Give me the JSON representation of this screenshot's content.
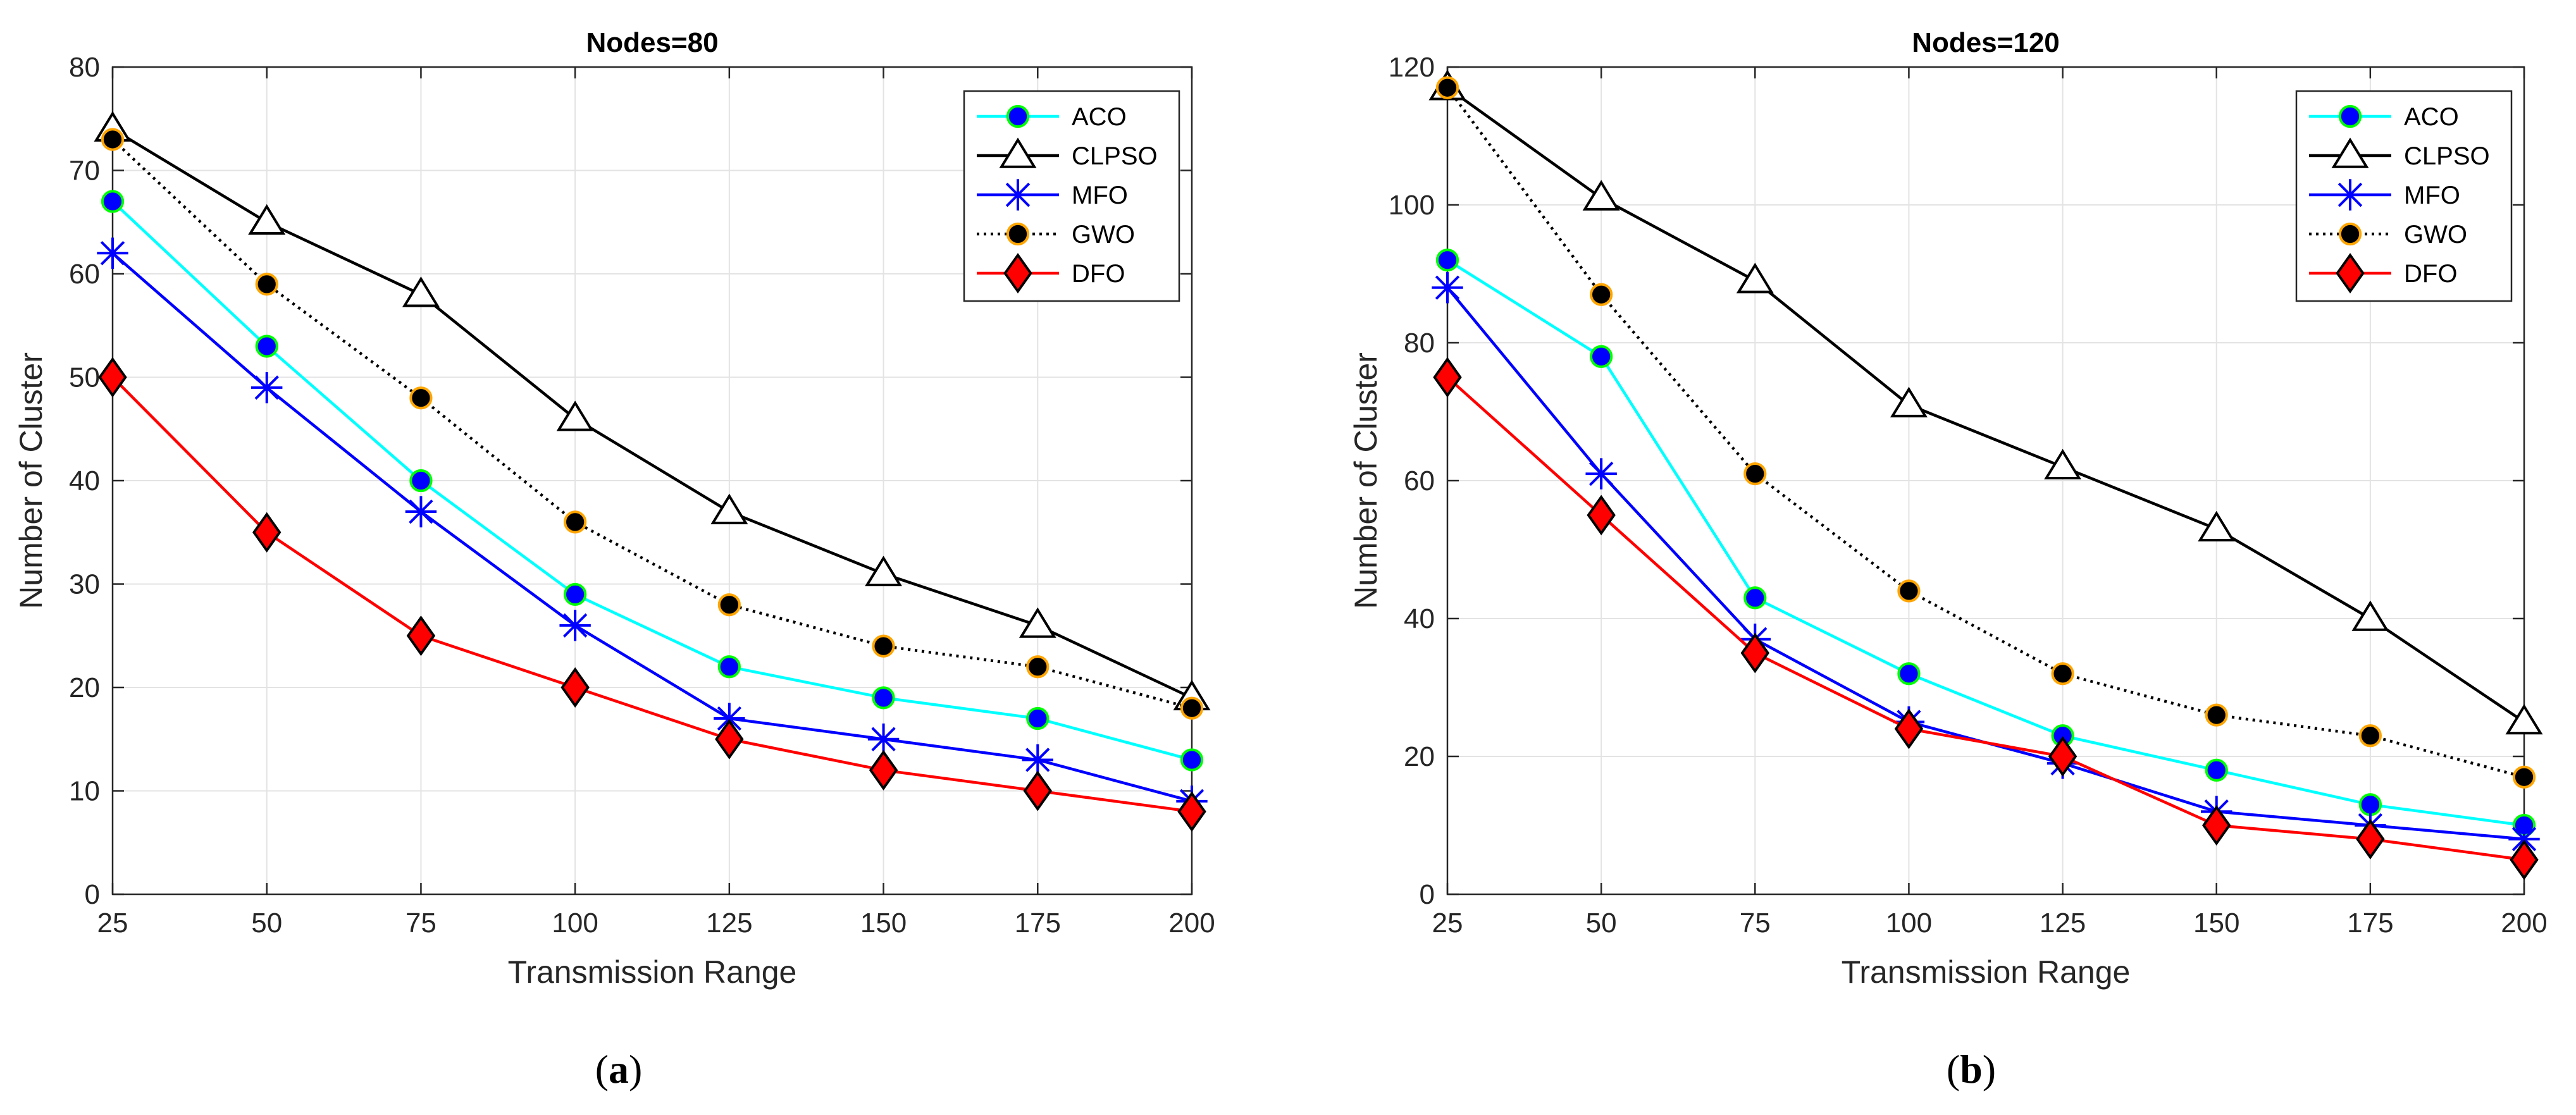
{
  "figure": {
    "captions": [
      {
        "open": "(",
        "letter": "a",
        "close": ")"
      },
      {
        "open": "(",
        "letter": "b",
        "close": ")"
      }
    ]
  },
  "chart_data": [
    {
      "type": "line",
      "title": "Nodes=80",
      "xlabel": "Transmission Range",
      "ylabel": "Number of Cluster",
      "x": [
        25,
        50,
        75,
        100,
        125,
        150,
        175,
        200
      ],
      "xlim": [
        25,
        200
      ],
      "ylim": [
        0,
        80
      ],
      "xticks": [
        25,
        50,
        75,
        100,
        125,
        150,
        175,
        200
      ],
      "yticks": [
        0,
        10,
        20,
        30,
        40,
        50,
        60,
        70,
        80
      ],
      "grid": true,
      "legend_position": "top-right",
      "series": [
        {
          "name": "ACO",
          "values": [
            67,
            53,
            40,
            29,
            22,
            19,
            17,
            13
          ],
          "color": "#00ffff",
          "marker": "circle",
          "marker_face": "#0000ff",
          "marker_edge": "#00ff00",
          "dash": "solid"
        },
        {
          "name": "CLPSO",
          "values": [
            74,
            65,
            58,
            46,
            37,
            31,
            26,
            19
          ],
          "color": "#000000",
          "marker": "triangle",
          "marker_face": "#ffffff",
          "marker_edge": "#000000",
          "dash": "solid"
        },
        {
          "name": "MFO",
          "values": [
            62,
            49,
            37,
            26,
            17,
            15,
            13,
            9
          ],
          "color": "#0000ff",
          "marker": "asterisk",
          "marker_face": "none",
          "marker_edge": "#0000ff",
          "dash": "solid"
        },
        {
          "name": "GWO",
          "values": [
            73,
            59,
            48,
            36,
            28,
            24,
            22,
            18
          ],
          "color": "#000000",
          "marker": "circle",
          "marker_face": "#000000",
          "marker_edge": "#ffa500",
          "dash": "dotted"
        },
        {
          "name": "DFO",
          "values": [
            50,
            35,
            25,
            20,
            15,
            12,
            10,
            8
          ],
          "color": "#ff0000",
          "marker": "diamond",
          "marker_face": "#ff0000",
          "marker_edge": "#000000",
          "dash": "solid"
        }
      ]
    },
    {
      "type": "line",
      "title": "Nodes=120",
      "xlabel": "Transmission Range",
      "ylabel": "Number of Cluster",
      "x": [
        25,
        50,
        75,
        100,
        125,
        150,
        175,
        200
      ],
      "xlim": [
        25,
        200
      ],
      "ylim": [
        0,
        120
      ],
      "xticks": [
        25,
        50,
        75,
        100,
        125,
        150,
        175,
        200
      ],
      "yticks": [
        0,
        20,
        40,
        60,
        80,
        100,
        120
      ],
      "grid": true,
      "legend_position": "top-right",
      "series": [
        {
          "name": "ACO",
          "values": [
            92,
            78,
            43,
            32,
            23,
            18,
            13,
            10
          ],
          "color": "#00ffff",
          "marker": "circle",
          "marker_face": "#0000ff",
          "marker_edge": "#00ff00",
          "dash": "solid"
        },
        {
          "name": "CLPSO",
          "values": [
            117,
            101,
            89,
            71,
            62,
            53,
            40,
            25
          ],
          "color": "#000000",
          "marker": "triangle",
          "marker_face": "#ffffff",
          "marker_edge": "#000000",
          "dash": "solid"
        },
        {
          "name": "MFO",
          "values": [
            88,
            61,
            37,
            25,
            19,
            12,
            10,
            8
          ],
          "color": "#0000ff",
          "marker": "asterisk",
          "marker_face": "none",
          "marker_edge": "#0000ff",
          "dash": "solid"
        },
        {
          "name": "GWO",
          "values": [
            117,
            87,
            61,
            44,
            32,
            26,
            23,
            17
          ],
          "color": "#000000",
          "marker": "circle",
          "marker_face": "#000000",
          "marker_edge": "#ffa500",
          "dash": "dotted"
        },
        {
          "name": "DFO",
          "values": [
            75,
            55,
            35,
            24,
            20,
            10,
            8,
            5
          ],
          "color": "#ff0000",
          "marker": "diamond",
          "marker_face": "#ff0000",
          "marker_edge": "#000000",
          "dash": "solid"
        }
      ]
    }
  ]
}
